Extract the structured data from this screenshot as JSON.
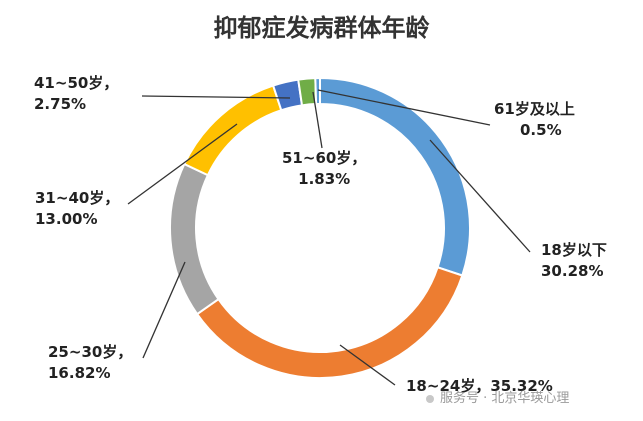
{
  "chart_data": {
    "type": "pie",
    "style": "donut",
    "title": "抑郁症发病群体年龄",
    "slices": [
      {
        "label": "18岁以下",
        "percent_label": "30.28%",
        "value": 30.28,
        "color": "#5b9bd5"
      },
      {
        "label": "18~24岁",
        "percent_label": "35.32%",
        "value": 35.32,
        "color": "#ed7d31"
      },
      {
        "label": "25~30岁",
        "percent_label": "16.82%",
        "value": 16.82,
        "color": "#a5a5a5"
      },
      {
        "label": "31~40岁",
        "percent_label": "13.00%",
        "value": 13.0,
        "color": "#ffc000"
      },
      {
        "label": "41~50岁",
        "percent_label": "2.75%",
        "value": 2.75,
        "color": "#4472c4"
      },
      {
        "label": "51~60岁",
        "percent_label": "1.83%",
        "value": 1.83,
        "color": "#70ad47"
      },
      {
        "label": "61岁及以上",
        "percent_label": "0.5%",
        "value": 0.5,
        "color": "#5b9bd5"
      }
    ]
  },
  "source_text": "服务号 · 北京华瑛心理"
}
